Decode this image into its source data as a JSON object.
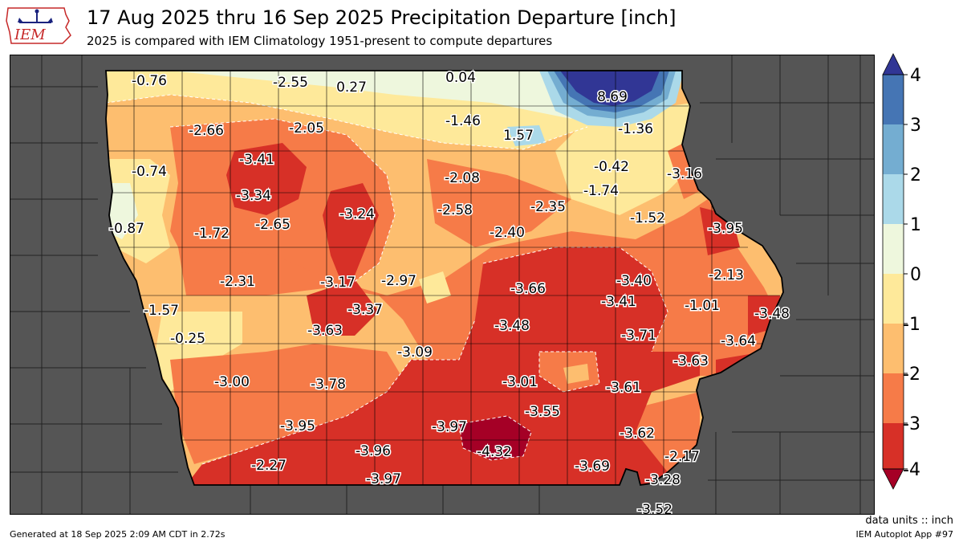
{
  "header": {
    "title": "17 Aug 2025 thru 16 Sep 2025 Precipitation Departure [inch]",
    "subtitle": "2025 is compared with IEM Climatology 1951-present to compute departures",
    "logo_text": "IEM"
  },
  "colorbar": {
    "ticks": [
      "4",
      "3",
      "2",
      "1",
      "0",
      "-1",
      "-2",
      "-3",
      "-4"
    ],
    "bins": [
      {
        "range": "above 4",
        "color": "#313695"
      },
      {
        "range": "3 to 4",
        "color": "#4575b4"
      },
      {
        "range": "2 to 3",
        "color": "#74add1"
      },
      {
        "range": "1 to 2",
        "color": "#abd9e9"
      },
      {
        "range": "0 to 1",
        "color": "#eef7dd"
      },
      {
        "range": "-1 to 0",
        "color": "#fee99a"
      },
      {
        "range": "-2 to -1",
        "color": "#fdbe6f"
      },
      {
        "range": "-3 to -2",
        "color": "#f67b48"
      },
      {
        "range": "-4 to -3",
        "color": "#d73027"
      },
      {
        "range": "below -4",
        "color": "#a50026"
      }
    ]
  },
  "stations": [
    {
      "value": "-0.76"
    },
    {
      "value": "-2.55"
    },
    {
      "value": "0.27"
    },
    {
      "value": "0.04"
    },
    {
      "value": "8.69"
    },
    {
      "value": "-2.66"
    },
    {
      "value": "-2.05"
    },
    {
      "value": "-1.46"
    },
    {
      "value": "1.57"
    },
    {
      "value": "-1.36"
    },
    {
      "value": "-3.41"
    },
    {
      "value": "-0.74"
    },
    {
      "value": "-0.42"
    },
    {
      "value": "-3.16"
    },
    {
      "value": "-3.34"
    },
    {
      "value": "-2.08"
    },
    {
      "value": "-1.74"
    },
    {
      "value": "-3.24"
    },
    {
      "value": "-2.58"
    },
    {
      "value": "-2.35"
    },
    {
      "value": "-1.52"
    },
    {
      "value": "-0.87"
    },
    {
      "value": "-1.72"
    },
    {
      "value": "-2.65"
    },
    {
      "value": "-2.40"
    },
    {
      "value": "-3.95"
    },
    {
      "value": "-2.31"
    },
    {
      "value": "-3.17"
    },
    {
      "value": "-2.97"
    },
    {
      "value": "-3.66"
    },
    {
      "value": "-3.40"
    },
    {
      "value": "-2.13"
    },
    {
      "value": "-1.57"
    },
    {
      "value": "-3.37"
    },
    {
      "value": "-3.41"
    },
    {
      "value": "-1.01"
    },
    {
      "value": "-3.48"
    },
    {
      "value": "-3.63"
    },
    {
      "value": "-3.48"
    },
    {
      "value": "-0.25"
    },
    {
      "value": "-3.71"
    },
    {
      "value": "-3.64"
    },
    {
      "value": "-3.09"
    },
    {
      "value": "-3.63"
    },
    {
      "value": "-3.00"
    },
    {
      "value": "-3.78"
    },
    {
      "value": "-3.01"
    },
    {
      "value": "-3.61"
    },
    {
      "value": "-3.55"
    },
    {
      "value": "-3.95"
    },
    {
      "value": "-3.97"
    },
    {
      "value": "-3.62"
    },
    {
      "value": "-3.96"
    },
    {
      "value": "-4.32"
    },
    {
      "value": "-2.17"
    },
    {
      "value": "-2.27"
    },
    {
      "value": "-3.69"
    },
    {
      "value": "-3.97"
    },
    {
      "value": "-3.28"
    },
    {
      "value": "-3.52"
    }
  ],
  "footer": {
    "units": "data units :: inch",
    "app": "IEM Autoplot App #97",
    "generated": "Generated at 18 Sep 2025 2:09 AM CDT in 2.72s"
  }
}
